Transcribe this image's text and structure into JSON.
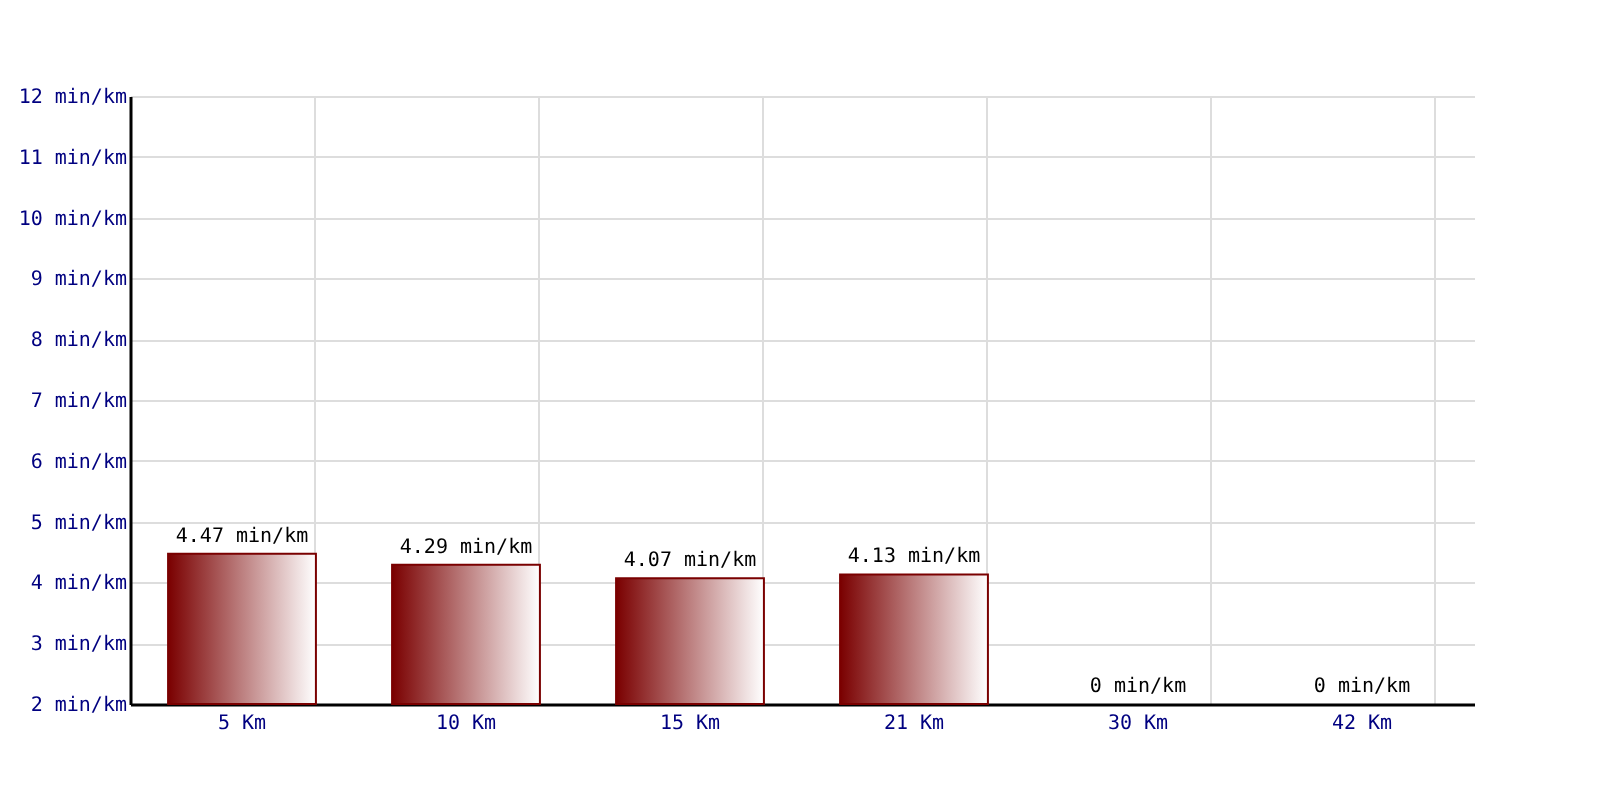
{
  "chart_data": {
    "type": "bar",
    "categories": [
      "5 Km",
      "10 Km",
      "15 Km",
      "21 Km",
      "30 Km",
      "42 Km"
    ],
    "series": [
      {
        "color": "#7a0000",
        "values": [
          4.47,
          4.29,
          4.07,
          4.13,
          null,
          null
        ],
        "value_labels": [
          "4.47 min/km",
          "4.29 min/km",
          "4.07 min/km",
          "4.13 min/km",
          "0 min/km",
          "0 min/km"
        ]
      }
    ],
    "ylim": [
      2,
      12
    ],
    "yticks": [
      {
        "value": 2,
        "label": "2 min/km"
      },
      {
        "value": 3,
        "label": "3 min/km"
      },
      {
        "value": 4,
        "label": "4 min/km"
      },
      {
        "value": 5,
        "label": "5 min/km"
      },
      {
        "value": 6,
        "label": "6 min/km"
      },
      {
        "value": 7,
        "label": "7 min/km"
      },
      {
        "value": 8,
        "label": "8 min/km"
      },
      {
        "value": 9,
        "label": "9 min/km"
      },
      {
        "value": 10,
        "label": "10 min/km"
      },
      {
        "value": 11,
        "label": "11 min/km"
      },
      {
        "value": 12,
        "label": "12 min/km"
      }
    ],
    "grid": true
  }
}
